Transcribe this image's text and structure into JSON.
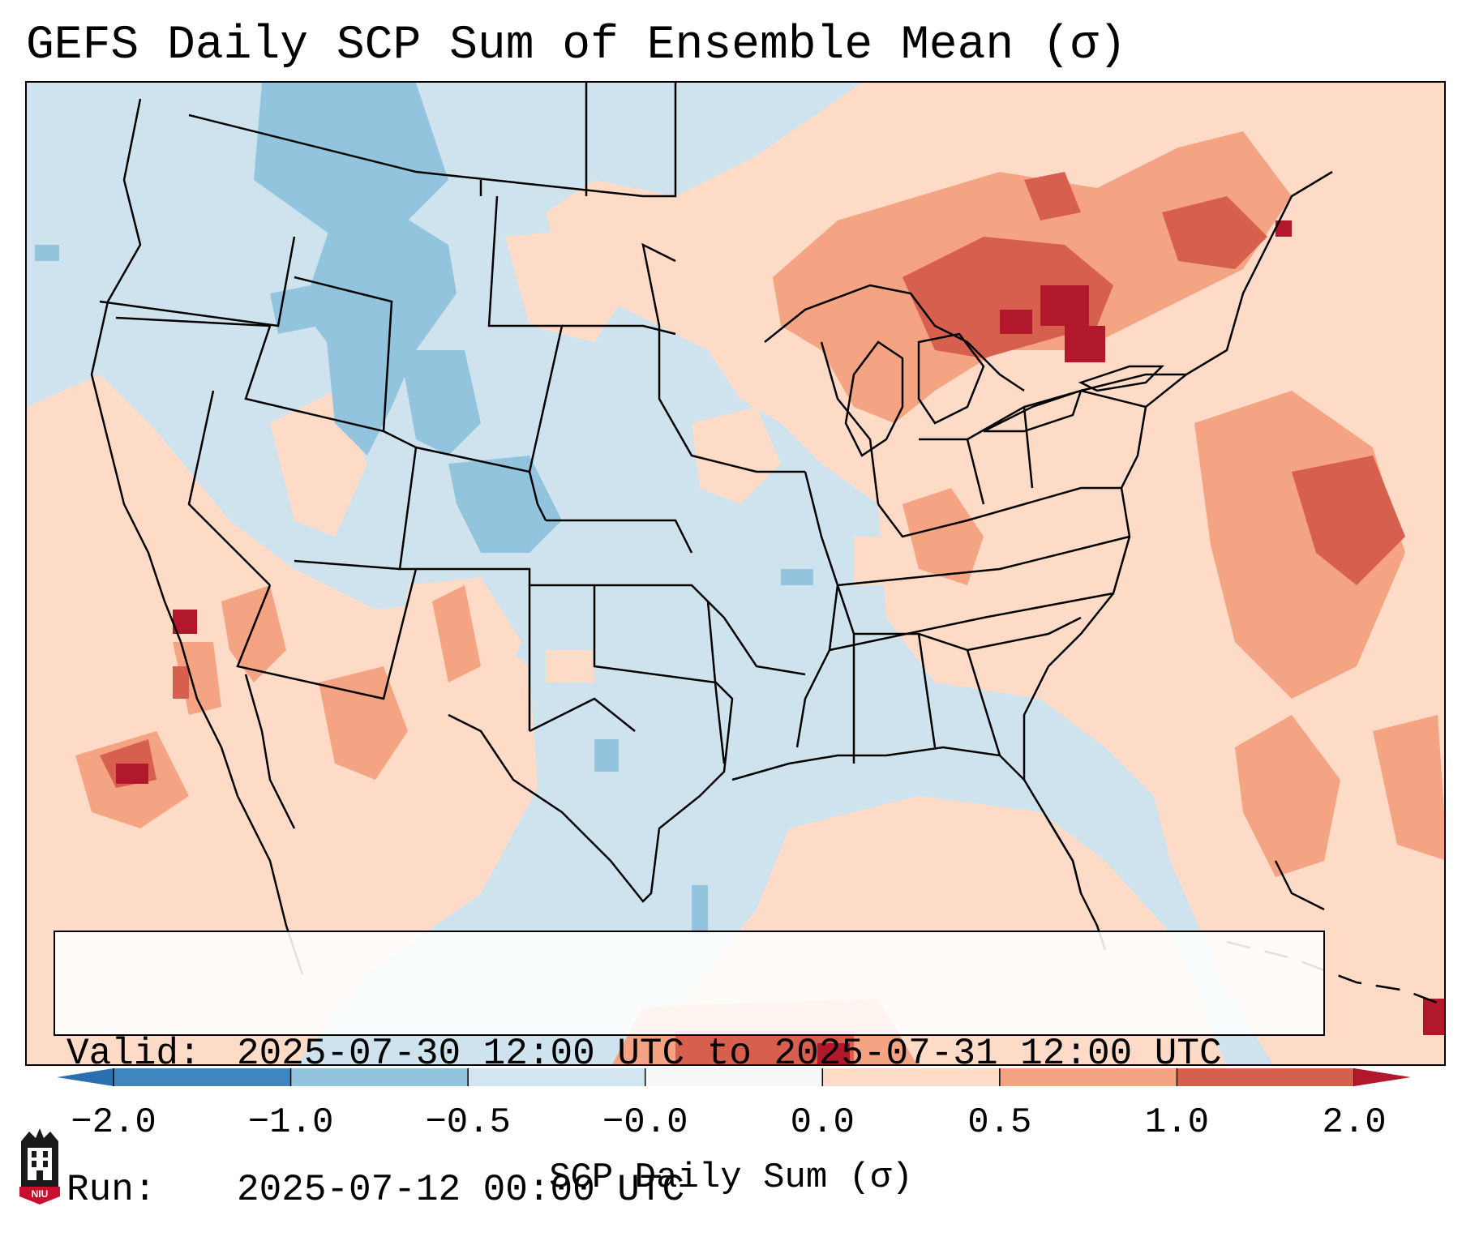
{
  "title": "GEFS Daily SCP Sum of Ensemble Mean (σ)",
  "info": {
    "valid_label": "Valid:",
    "valid_value": "2025-07-30 12:00 UTC to 2025-07-31 12:00 UTC",
    "run_label": "Run:",
    "run_value": "2025-07-12 00:00 UTC"
  },
  "colorbar": {
    "label": "SCP Daily Sum (σ)",
    "ticks": [
      "−2.0",
      "−1.0",
      "−0.5",
      "−0.0",
      "0.0",
      "0.5",
      "1.0",
      "2.0"
    ],
    "colors": [
      "#3f86c0",
      "#92c4de",
      "#d2e5f0",
      "#f7f7f7",
      "#fddbc7",
      "#f4a482",
      "#d6604d",
      "#b2182b"
    ],
    "extend_low_color": "#2c6fb0",
    "extend_high_color": "#b2182b"
  },
  "logo": {
    "text": "NIU"
  },
  "map": {
    "background_color": "#cfe3ef",
    "border_color": "#000000"
  }
}
